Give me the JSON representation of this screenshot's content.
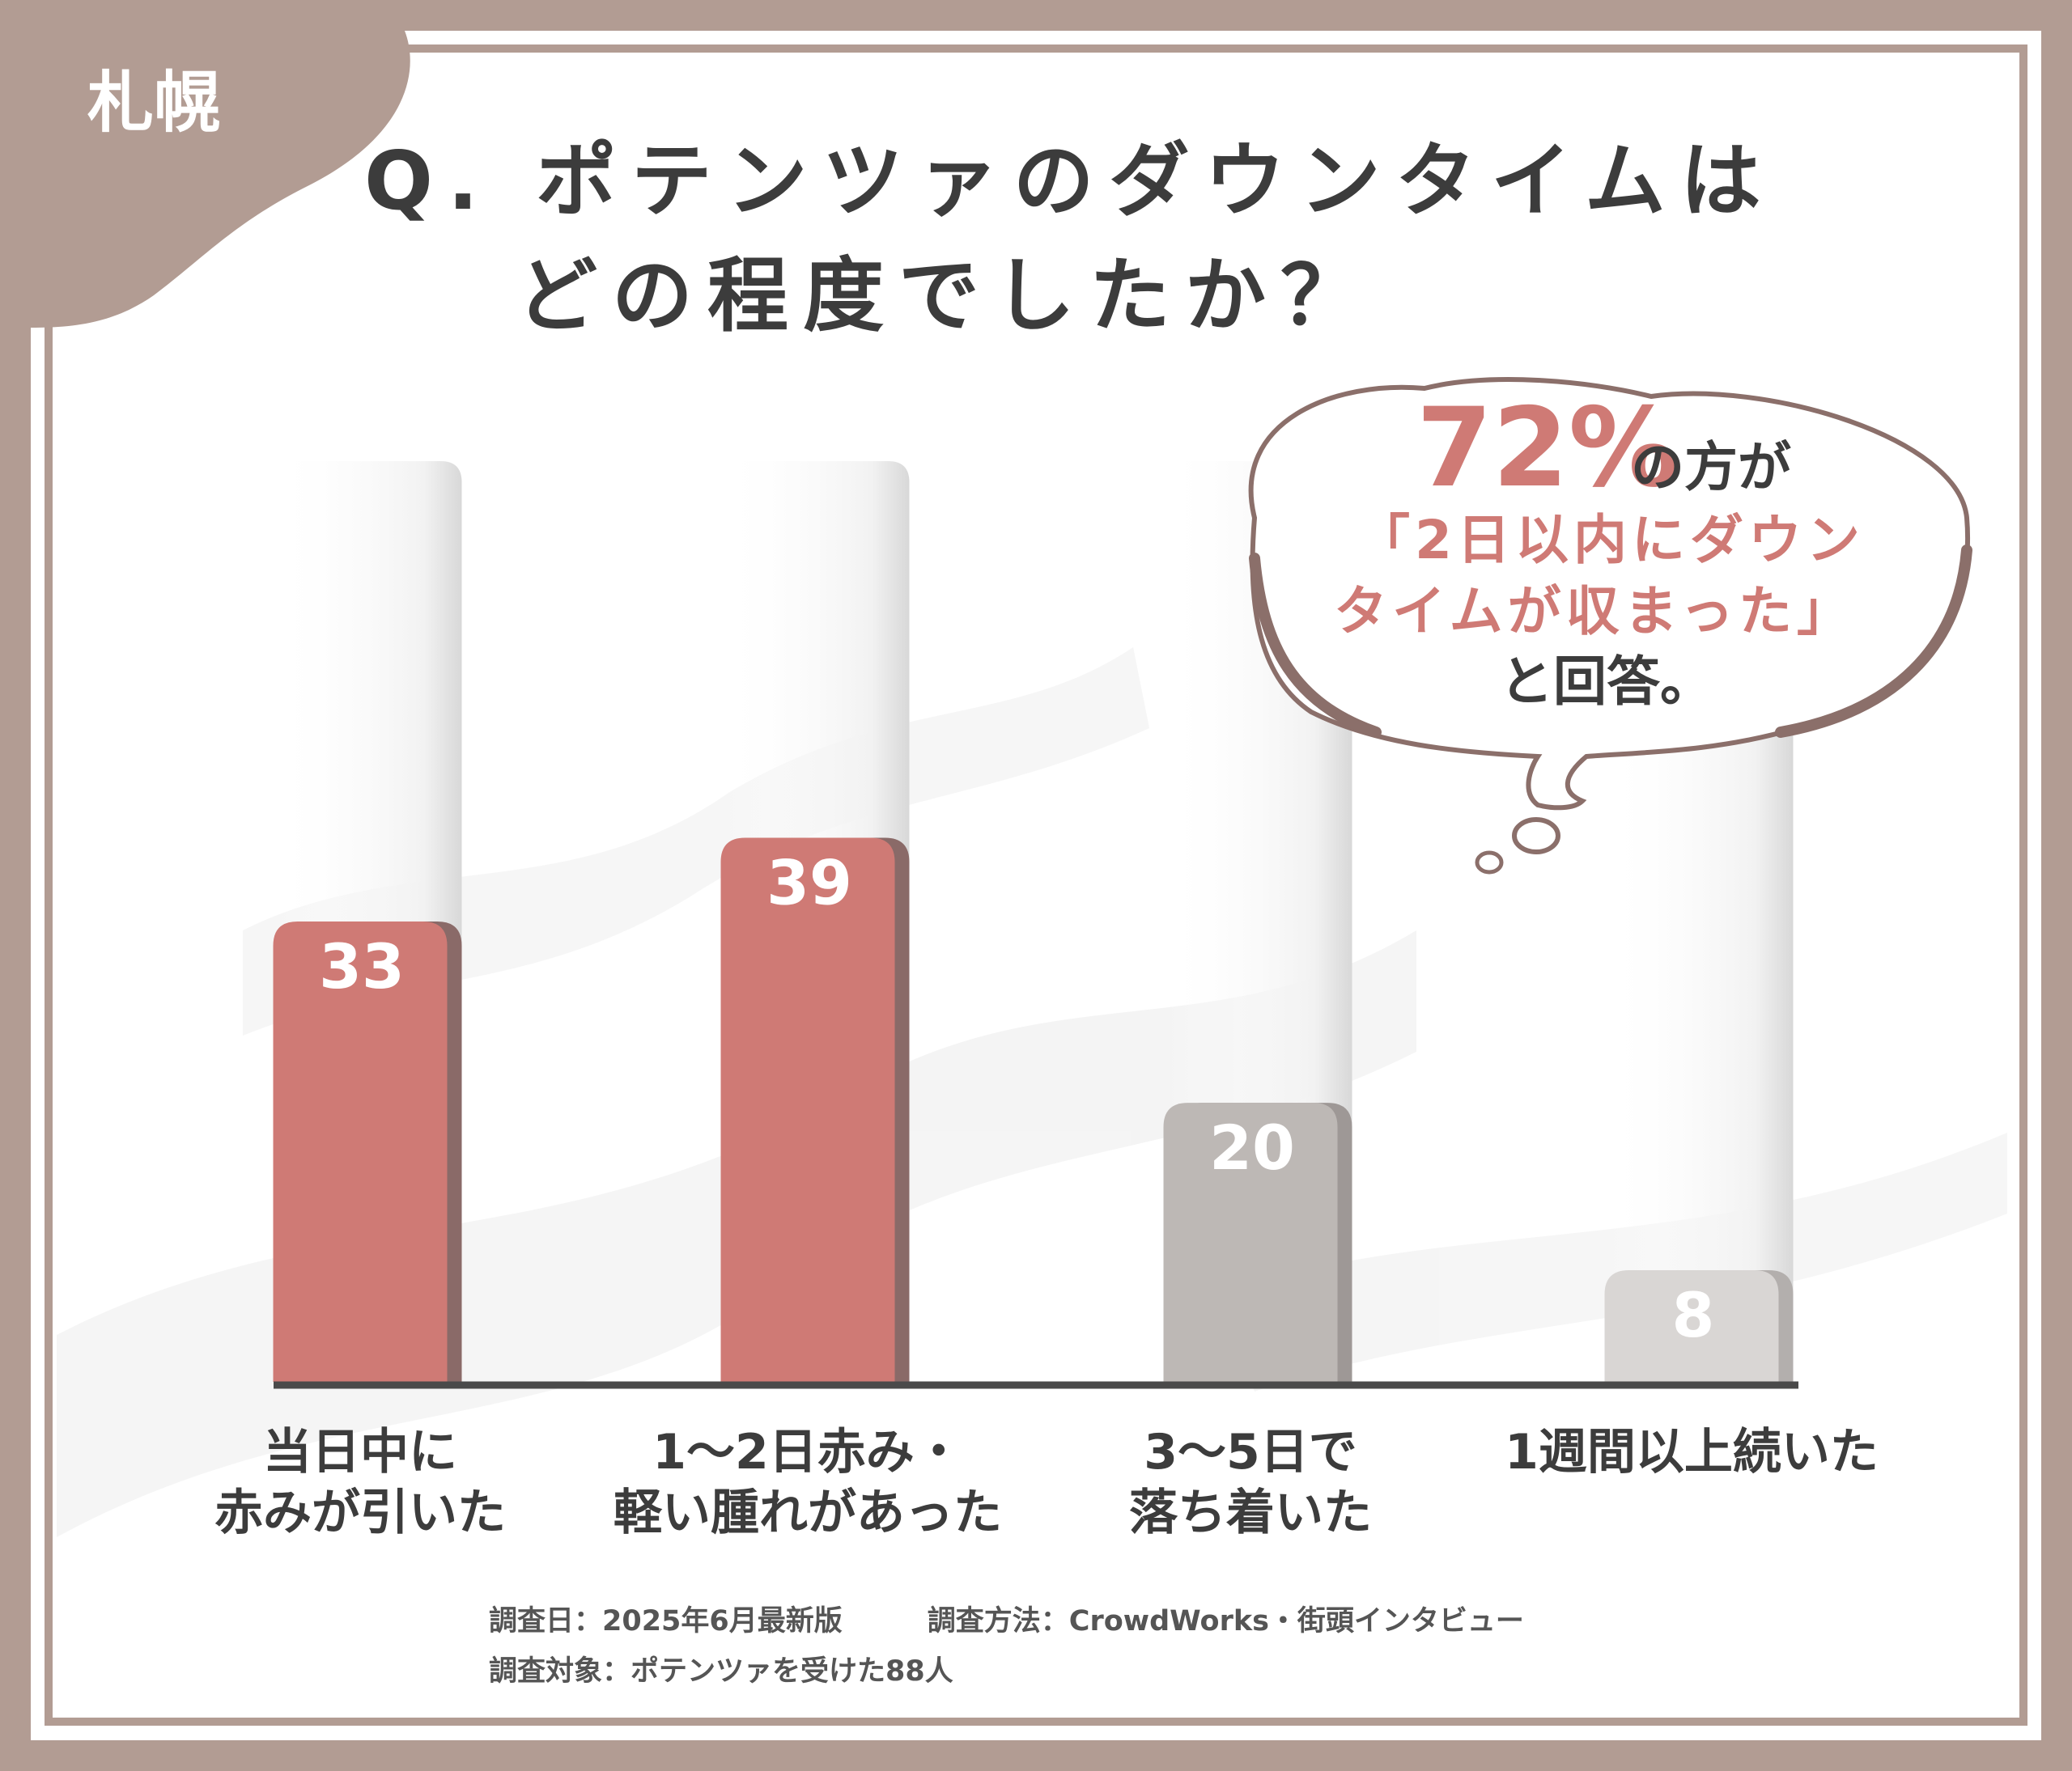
{
  "city_tab": "札幌",
  "question": {
    "line1": "Q. ポテンツァのダウンタイムは",
    "line2": "どの程度でしたか？"
  },
  "callout": {
    "percent": "72%",
    "after_percent": "の方が",
    "quote_line1": "「2日以内にダウン",
    "quote_line2": "タイムが収まった」",
    "closing": "と回答。"
  },
  "footer": {
    "date": "調査日：2025年6月最新版",
    "method": "調査方法：CrowdWorks・街頭インタビュー",
    "target": "調査対象：ポテンツァを受けた88人"
  },
  "colors": {
    "frame": "#b29c93",
    "highlight_bar": "#cf7a75",
    "highlight_shadow": "#8a6a68",
    "gray_bar": "#bdb8b5",
    "light_gray_bar": "#d9d6d4",
    "accent_text": "#cf7a75",
    "dark_text": "#3c3c3c"
  },
  "chart_data": {
    "type": "bar",
    "categories": [
      [
        "当日中に",
        "赤みが引いた"
      ],
      [
        "1〜2日赤み・",
        "軽い腫れがあった"
      ],
      [
        "3〜5日で",
        "落ち着いた"
      ],
      [
        "1週間以上続いた"
      ]
    ],
    "values": [
      33,
      39,
      20,
      8
    ],
    "bar_styles": [
      "highlight",
      "highlight",
      "gray",
      "light_gray"
    ],
    "ylim": [
      0,
      66
    ],
    "grid": false,
    "legend": "none"
  }
}
